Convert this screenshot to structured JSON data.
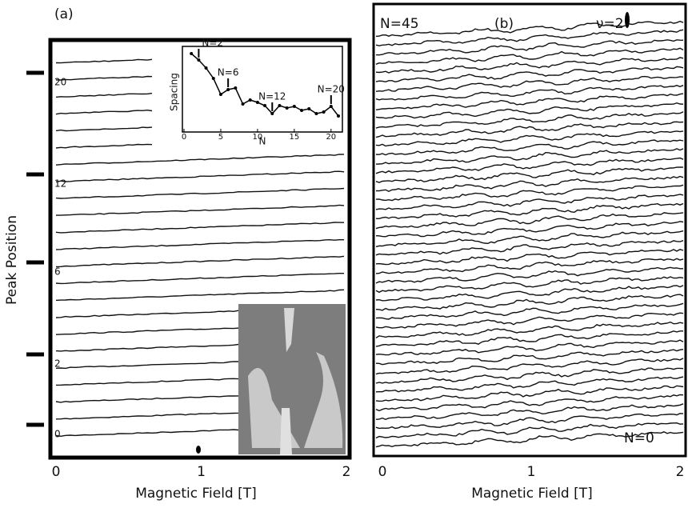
{
  "chart_data": [
    {
      "type": "traces",
      "panel_label": "(a)",
      "xlabel": "Magnetic Field [T]",
      "ylabel": "Peak Position",
      "xlim": [
        0,
        2
      ],
      "xticks": [
        0,
        1,
        2
      ],
      "peak_labels": [
        "0",
        "2",
        "6",
        "12",
        "20"
      ]
    },
    {
      "type": "line",
      "xlabel": "N",
      "ylabel": "Spacing",
      "x": [
        1,
        2,
        3,
        4,
        5,
        6,
        7,
        8,
        9,
        10,
        11,
        12,
        13,
        14,
        15,
        16,
        17,
        18,
        19,
        20,
        21
      ],
      "values": [
        0.93,
        0.85,
        0.75,
        0.62,
        0.42,
        0.48,
        0.5,
        0.3,
        0.35,
        0.32,
        0.28,
        0.18,
        0.28,
        0.25,
        0.27,
        0.22,
        0.24,
        0.18,
        0.2,
        0.27,
        0.15
      ],
      "xlim": [
        0,
        21
      ],
      "ylim": [
        0,
        1
      ],
      "xticks": [
        0,
        5,
        10,
        15,
        20
      ],
      "annotations": [
        {
          "text": "N=2",
          "x": 2
        },
        {
          "text": "N=6",
          "x": 6
        },
        {
          "text": "N=12",
          "x": 12
        },
        {
          "text": "N=20",
          "x": 20
        }
      ]
    },
    {
      "type": "traces",
      "panel_label": "(b)",
      "xlabel": "Magnetic Field [T]",
      "xlim": [
        0,
        2
      ],
      "xticks": [
        0,
        1,
        2
      ],
      "top_label": "N=45",
      "bottom_label": "N=0",
      "nu_label": "ν=2"
    }
  ]
}
